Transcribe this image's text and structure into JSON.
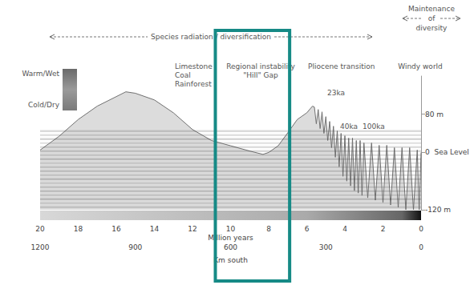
{
  "chart_data": {
    "type": "line",
    "x_label": "Million years",
    "x2_label": "Km south",
    "color": "#707070",
    "x": [
      20,
      19,
      18,
      17,
      16,
      15.5,
      15,
      14,
      13,
      12,
      11,
      10,
      9,
      8.3,
      8,
      7.5,
      7,
      6.5,
      6,
      5.7,
      5.6,
      5.5,
      5.4,
      5.3,
      5.2,
      5.1,
      5,
      4.9,
      4.8,
      4.7,
      4.6,
      4.5,
      4.4,
      4.3,
      4.2,
      4.1,
      4.0,
      3.9,
      3.8,
      3.7,
      3.6,
      3.5,
      3.4,
      3.3,
      3.2,
      3.1,
      3.0,
      2.8,
      2.6,
      2.4,
      2.2,
      2.0,
      1.8,
      1.6,
      1.4,
      1.2,
      1.0,
      0.8,
      0.6,
      0.4,
      0.2,
      0.1,
      0
    ],
    "values": [
      5,
      34,
      69,
      97,
      117,
      127,
      124,
      110,
      83,
      48,
      25,
      14,
      3,
      -4,
      0,
      14,
      41,
      69,
      83,
      97,
      95,
      60,
      90,
      50,
      85,
      40,
      75,
      25,
      65,
      10,
      55,
      -10,
      45,
      -30,
      40,
      -50,
      35,
      -60,
      30,
      -70,
      30,
      -80,
      25,
      -85,
      25,
      -90,
      20,
      -95,
      20,
      -100,
      15,
      -105,
      15,
      -110,
      10,
      -115,
      10,
      -120,
      10,
      -120,
      5,
      -120,
      0
    ],
    "xlim": [
      20,
      0
    ],
    "xticks": [
      20,
      18,
      16,
      14,
      12,
      10,
      8,
      6,
      4,
      2,
      0
    ],
    "x2lim": [
      1200,
      0
    ],
    "x2ticks": [
      1200,
      900,
      600,
      300,
      0
    ],
    "ylim": [
      -120,
      160
    ],
    "yticks": [
      {
        "value": -120,
        "label": "-120 m"
      },
      {
        "value": 0,
        "label": "0  Sea Level"
      },
      {
        "value": 80,
        "label": "80 m"
      }
    ],
    "grid": false,
    "annotations": [
      "Species radiation / diversification",
      "Maintenance",
      "of",
      "diversity",
      "Warm/Wet",
      "Cold/Dry",
      "Limestone",
      "Coal",
      "Rainforest",
      "Regional instability",
      "\"Hill\" Gap",
      "Pliocene transition",
      "Windy world",
      "23ka",
      "40ka",
      "100ka"
    ],
    "highlight": {
      "x": [
        10.8,
        6.9
      ],
      "color": "#168a86"
    }
  }
}
